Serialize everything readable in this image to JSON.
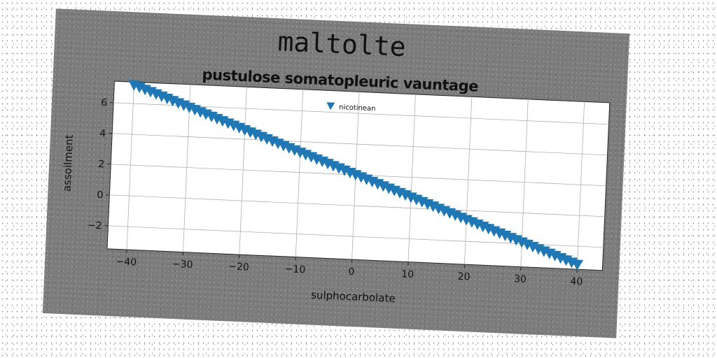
{
  "figure_title": "maltolte",
  "chart_data": {
    "type": "scatter",
    "title": "pustulose somatopleuric vauntage",
    "xlabel": "sulphocarbolate",
    "ylabel": "assoilment",
    "xlim": [
      -43.5,
      44.5
    ],
    "ylim": [
      -3.5,
      7.4
    ],
    "xticks": [
      -40,
      -30,
      -20,
      -10,
      0,
      10,
      20,
      30,
      40
    ],
    "xtick_labels": [
      "−40",
      "−30",
      "−20",
      "−10",
      "0",
      "10",
      "20",
      "30",
      "40"
    ],
    "yticks": [
      -2,
      0,
      2,
      4,
      6
    ],
    "ytick_labels": [
      "−2",
      "0",
      "2",
      "4",
      "6"
    ],
    "grid": true,
    "legend_position": "top-center",
    "marker": "triangle-down",
    "color": "#1f77b4",
    "series": [
      {
        "name": "nicotinean",
        "x": [
          -40,
          -39,
          -38,
          -37,
          -36,
          -35,
          -34,
          -33,
          -32,
          -31,
          -30,
          -29,
          -28,
          -27,
          -26,
          -25,
          -24,
          -23,
          -22,
          -21,
          -20,
          -19,
          -18,
          -17,
          -16,
          -15,
          -14,
          -13,
          -12,
          -11,
          -10,
          -9,
          -8,
          -7,
          -6,
          -5,
          -4,
          -3,
          -2,
          -1,
          0,
          1,
          2,
          3,
          4,
          5,
          6,
          7,
          8,
          9,
          10,
          11,
          12,
          13,
          14,
          15,
          16,
          17,
          18,
          19,
          20,
          21,
          22,
          23,
          24,
          25,
          26,
          27,
          28,
          29,
          30,
          31,
          32,
          33,
          34,
          35,
          36,
          37,
          38,
          39,
          40
        ],
        "y": [
          7.2,
          7.07,
          6.94,
          6.81,
          6.68,
          6.55,
          6.42,
          6.29,
          6.16,
          6.03,
          5.9,
          5.77,
          5.64,
          5.51,
          5.38,
          5.25,
          5.12,
          4.99,
          4.86,
          4.73,
          4.6,
          4.47,
          4.34,
          4.21,
          4.08,
          3.95,
          3.82,
          3.69,
          3.56,
          3.43,
          3.3,
          3.17,
          3.04,
          2.91,
          2.78,
          2.65,
          2.52,
          2.39,
          2.26,
          2.13,
          2.0,
          1.87,
          1.74,
          1.61,
          1.48,
          1.35,
          1.22,
          1.09,
          0.96,
          0.83,
          0.7,
          0.57,
          0.44,
          0.31,
          0.18,
          0.05,
          -0.08,
          -0.21,
          -0.34,
          -0.47,
          -0.6,
          -0.73,
          -0.86,
          -0.99,
          -1.12,
          -1.25,
          -1.38,
          -1.51,
          -1.64,
          -1.77,
          -1.9,
          -2.03,
          -2.16,
          -2.29,
          -2.42,
          -2.55,
          -2.68,
          -2.81,
          -2.94,
          -3.07,
          -3.2
        ]
      }
    ]
  }
}
